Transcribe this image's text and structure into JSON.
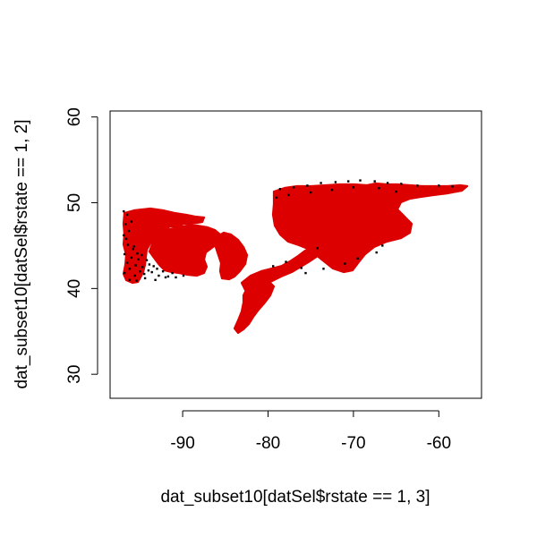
{
  "chart_data": {
    "type": "scatter",
    "title": "",
    "xlabel": "dat_subset10[datSel$rstate == 1, 3]",
    "ylabel": "dat_subset10[datSel$rstate == 1, 2]",
    "xlim": [
      -98.5,
      -55.0
    ],
    "ylim": [
      27.2,
      60.7
    ],
    "x_ticks": [
      -90,
      -80,
      -70,
      -60
    ],
    "y_ticks": [
      30,
      40,
      50,
      60
    ],
    "x_tick_labels": [
      "-90",
      "-80",
      "-70",
      "-60"
    ],
    "y_tick_labels": [
      "30",
      "40",
      "50",
      "60"
    ],
    "grid": false,
    "legend": "none",
    "point_colors": {
      "red": "#dd0000",
      "black": "#000000"
    },
    "black_points": [
      [
        -96.9,
        49.0
      ],
      [
        -96.5,
        48.6
      ],
      [
        -96.7,
        47.5
      ],
      [
        -96.3,
        46.7
      ],
      [
        -96.6,
        45.8
      ],
      [
        -96.4,
        45.1
      ],
      [
        -95.8,
        44.6
      ],
      [
        -96.8,
        44.0
      ],
      [
        -96.0,
        43.6
      ],
      [
        -95.2,
        43.4
      ],
      [
        -96.5,
        43.0
      ],
      [
        -95.5,
        42.7
      ],
      [
        -94.7,
        42.5
      ],
      [
        -96.2,
        42.3
      ],
      [
        -95.0,
        42.0
      ],
      [
        -94.0,
        42.1
      ],
      [
        -96.8,
        41.8
      ],
      [
        -95.6,
        41.5
      ],
      [
        -94.5,
        41.7
      ],
      [
        -93.6,
        41.9
      ],
      [
        -92.8,
        41.5
      ],
      [
        -91.7,
        41.4
      ],
      [
        -90.8,
        41.3
      ],
      [
        -89.9,
        41.5
      ],
      [
        -96.2,
        41.0
      ],
      [
        -95.4,
        40.9
      ],
      [
        -94.4,
        41.2
      ],
      [
        -93.2,
        41.0
      ],
      [
        -92.0,
        41.3
      ],
      [
        -95.7,
        44.9
      ],
      [
        -94.8,
        43.9
      ],
      [
        -93.9,
        42.8
      ],
      [
        -93.0,
        42.3
      ],
      [
        -92.3,
        42.0
      ],
      [
        -91.2,
        41.8
      ],
      [
        -96.9,
        46.2
      ],
      [
        -96.0,
        47.8
      ],
      [
        -95.3,
        44.1
      ],
      [
        -94.2,
        43.3
      ],
      [
        -93.4,
        42.6
      ],
      [
        -78.6,
        51.6
      ],
      [
        -77.0,
        51.8
      ],
      [
        -75.4,
        52.0
      ],
      [
        -73.8,
        52.3
      ],
      [
        -72.1,
        52.4
      ],
      [
        -70.6,
        52.5
      ],
      [
        -69.2,
        52.6
      ],
      [
        -67.5,
        52.5
      ],
      [
        -66.0,
        52.3
      ],
      [
        -64.4,
        52.2
      ],
      [
        -79.0,
        50.6
      ],
      [
        -77.6,
        50.9
      ],
      [
        -75.0,
        51.2
      ],
      [
        -72.5,
        51.5
      ],
      [
        -70.0,
        51.8
      ],
      [
        -67.0,
        51.7
      ],
      [
        -62.5,
        52.0
      ],
      [
        -60.0,
        52.0
      ],
      [
        -58.4,
        51.9
      ],
      [
        -65.0,
        51.3
      ],
      [
        -69.5,
        43.5
      ],
      [
        -67.3,
        44.2
      ],
      [
        -66.6,
        45.0
      ],
      [
        -71.0,
        42.9
      ],
      [
        -73.5,
        42.3
      ],
      [
        -76.1,
        42.4
      ],
      [
        -77.9,
        43.1
      ],
      [
        -79.4,
        42.6
      ],
      [
        -74.2,
        44.7
      ],
      [
        -75.6,
        41.8
      ]
    ]
  }
}
